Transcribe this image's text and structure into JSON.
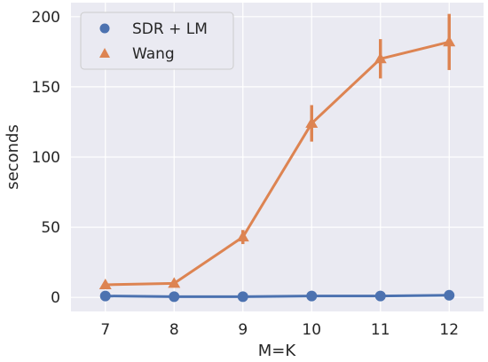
{
  "chart_data": {
    "type": "line",
    "xlabel": "M=K",
    "ylabel": "seconds",
    "x": [
      7,
      8,
      9,
      10,
      11,
      12
    ],
    "ylim": [
      -10,
      210
    ],
    "yticks": [
      0,
      50,
      100,
      150,
      200
    ],
    "grid": true,
    "legend_position": "top-left",
    "series": [
      {
        "name": "SDR + LM",
        "marker": "circle",
        "color": "#4c72b0",
        "values": [
          1.0,
          0.5,
          0.5,
          1.0,
          1.0,
          1.5
        ],
        "error": [
          0.5,
          0.5,
          0.5,
          0.5,
          0.5,
          0.5
        ]
      },
      {
        "name": "Wang",
        "marker": "triangle",
        "color": "#dd8452",
        "values": [
          9,
          10,
          43,
          124,
          170,
          182
        ],
        "error": [
          1,
          1,
          5,
          13,
          14,
          20
        ]
      }
    ],
    "colors": {
      "plot_background": "#eaeaf2",
      "grid": "#ffffff",
      "text": "#262626"
    }
  }
}
